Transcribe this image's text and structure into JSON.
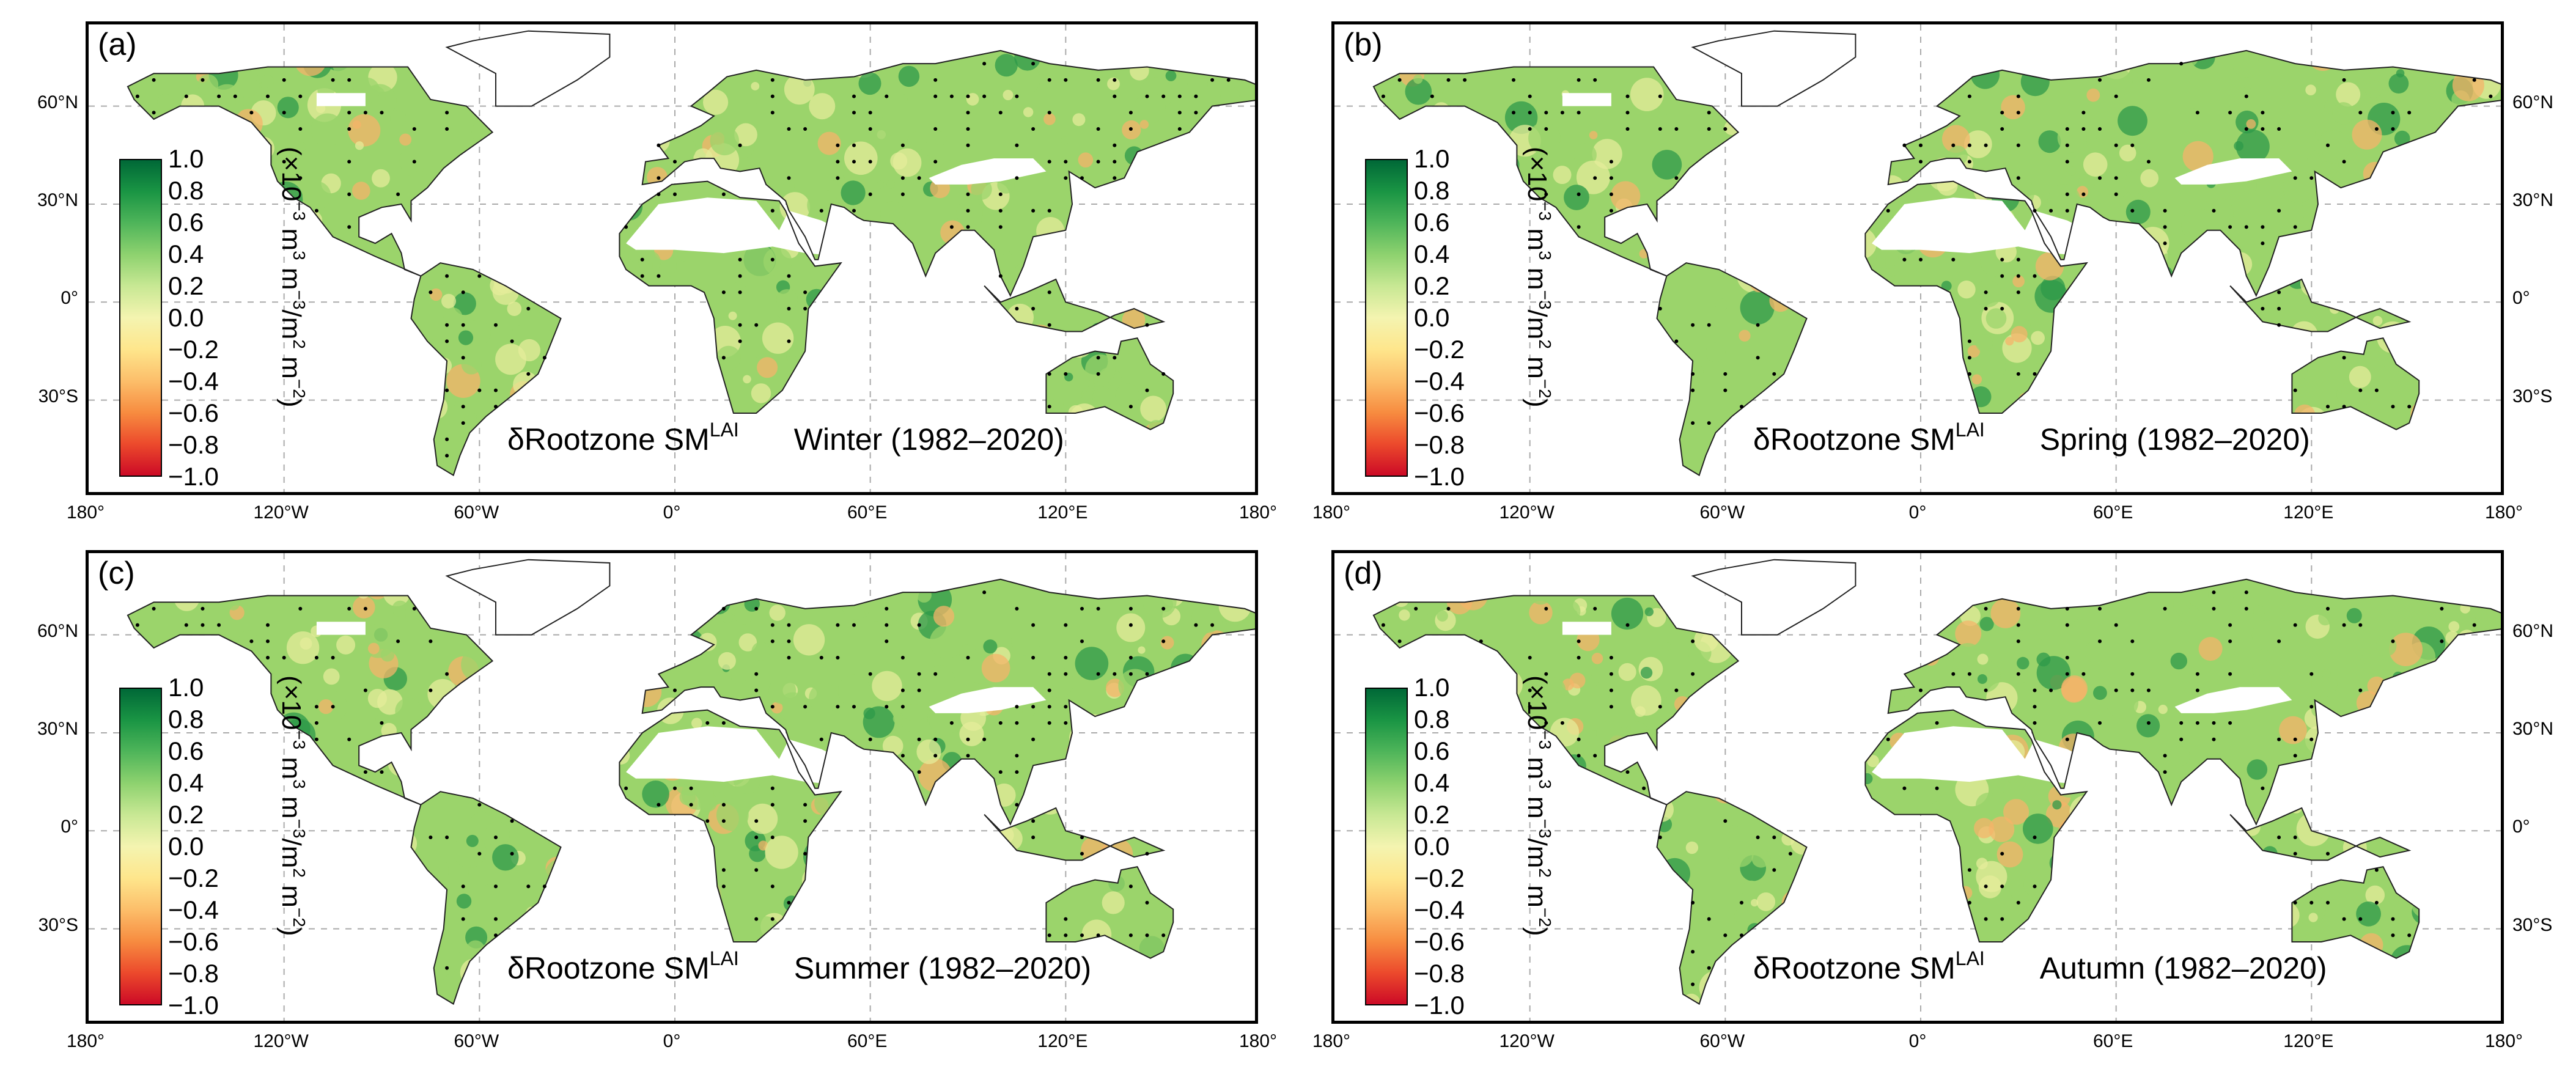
{
  "figure": {
    "longitude_ticks": [
      "180°",
      "120°W",
      "60°W",
      "0°",
      "60°E",
      "120°E",
      "180°"
    ],
    "latitude_ticks": [
      "60°N",
      "30°N",
      "0°",
      "30°S"
    ],
    "colorbar": {
      "ticks": [
        "1.0",
        "0.8",
        "0.6",
        "0.4",
        "0.2",
        "0.0",
        "−0.2",
        "−0.4",
        "−0.6",
        "−0.8",
        "−1.0"
      ],
      "unit_pre": "(×10",
      "unit_sup1": "−3",
      "unit_mid1": " m",
      "unit_sup2": "3",
      "unit_mid2": " m",
      "unit_sup3": "−3",
      "unit_mid3": "/m",
      "unit_sup4": "2",
      "unit_mid4": " m",
      "unit_sup5": "−2",
      "unit_post": ")",
      "colors": [
        "#cc0a26",
        "#ec4a2c",
        "#f78c40",
        "#fcbe6a",
        "#fee68c",
        "#f4f4b0",
        "#c8e894",
        "#8ed26f",
        "#4fb55a",
        "#1a9544",
        "#006837"
      ]
    },
    "variable_name": "δRootzone SM",
    "variable_superscript": "LAI",
    "panels": [
      {
        "label": "(a)",
        "season": "Winter (1982–2020)"
      },
      {
        "label": "(b)",
        "season": "Spring (1982–2020)"
      },
      {
        "label": "(c)",
        "season": "Summer (1982–2020)"
      },
      {
        "label": "(d)",
        "season": "Autumn (1982–2020)"
      }
    ],
    "colors": {
      "land_green": "#9bd46b",
      "land_dark": "#2e9a4a",
      "land_yellow": "#e4ec9a",
      "land_orange": "#f4b46a",
      "desert": "#ffffff",
      "coast": "#222222",
      "grid": "#aaaaaa"
    }
  }
}
